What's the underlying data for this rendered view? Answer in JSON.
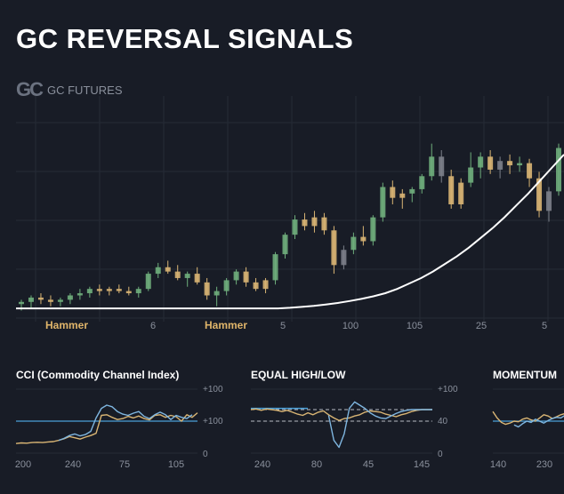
{
  "title": "GC REVERSAL SIGNALS",
  "logo": {
    "mark": "GC",
    "text": "GC FUTURES"
  },
  "colors": {
    "bull": "#6fae7c",
    "bear": "#d9b574",
    "neutral": "#7c808a",
    "trend": "#ffffff",
    "indicator_blue": "#7fb6e0",
    "indicator_gold": "#d9b574",
    "reference_line": "#4a9fd8",
    "grid": "#262b36"
  },
  "chart_data": [
    {
      "type": "candlestick",
      "name": "main-price",
      "title": "GC REVERSAL SIGNALS",
      "x_ticks": [
        "Hammer",
        "6",
        "Hammer",
        "5",
        "100",
        "105",
        "25",
        "5"
      ],
      "annotations": [
        "Hammer",
        "Hammer"
      ],
      "ylim": [
        0,
        100
      ],
      "candles": [
        {
          "o": 4,
          "h": 6,
          "l": 1,
          "c": 5,
          "t": "bull"
        },
        {
          "o": 5,
          "h": 8,
          "l": 2,
          "c": 7,
          "t": "bull"
        },
        {
          "o": 7,
          "h": 9,
          "l": 4,
          "c": 6,
          "t": "bear"
        },
        {
          "o": 6,
          "h": 8,
          "l": 3,
          "c": 5,
          "t": "bear"
        },
        {
          "o": 5,
          "h": 7,
          "l": 3,
          "c": 6,
          "t": "bull"
        },
        {
          "o": 6,
          "h": 9,
          "l": 4,
          "c": 8,
          "t": "bull"
        },
        {
          "o": 8,
          "h": 11,
          "l": 6,
          "c": 9,
          "t": "bull"
        },
        {
          "o": 9,
          "h": 12,
          "l": 7,
          "c": 11,
          "t": "bull"
        },
        {
          "o": 11,
          "h": 13,
          "l": 8,
          "c": 10,
          "t": "bear"
        },
        {
          "o": 10,
          "h": 12,
          "l": 8,
          "c": 11,
          "t": "bear"
        },
        {
          "o": 11,
          "h": 13,
          "l": 9,
          "c": 10,
          "t": "bear"
        },
        {
          "o": 10,
          "h": 12,
          "l": 8,
          "c": 9,
          "t": "bear"
        },
        {
          "o": 9,
          "h": 12,
          "l": 7,
          "c": 11,
          "t": "bull"
        },
        {
          "o": 11,
          "h": 19,
          "l": 10,
          "c": 18,
          "t": "bull"
        },
        {
          "o": 18,
          "h": 23,
          "l": 16,
          "c": 21,
          "t": "bull"
        },
        {
          "o": 21,
          "h": 24,
          "l": 18,
          "c": 19,
          "t": "bear"
        },
        {
          "o": 19,
          "h": 22,
          "l": 15,
          "c": 16,
          "t": "bear"
        },
        {
          "o": 16,
          "h": 19,
          "l": 12,
          "c": 18,
          "t": "bull"
        },
        {
          "o": 18,
          "h": 21,
          "l": 13,
          "c": 14,
          "t": "bear"
        },
        {
          "o": 14,
          "h": 16,
          "l": 6,
          "c": 8,
          "t": "bear"
        },
        {
          "o": 8,
          "h": 12,
          "l": 3,
          "c": 10,
          "t": "bull"
        },
        {
          "o": 10,
          "h": 16,
          "l": 8,
          "c": 15,
          "t": "bull"
        },
        {
          "o": 15,
          "h": 20,
          "l": 13,
          "c": 19,
          "t": "bull"
        },
        {
          "o": 19,
          "h": 21,
          "l": 12,
          "c": 14,
          "t": "bear"
        },
        {
          "o": 14,
          "h": 16,
          "l": 10,
          "c": 11,
          "t": "bear"
        },
        {
          "o": 11,
          "h": 16,
          "l": 9,
          "c": 15,
          "t": "bear"
        },
        {
          "o": 15,
          "h": 28,
          "l": 13,
          "c": 27,
          "t": "bull"
        },
        {
          "o": 27,
          "h": 37,
          "l": 25,
          "c": 36,
          "t": "bull"
        },
        {
          "o": 36,
          "h": 45,
          "l": 34,
          "c": 43,
          "t": "bull"
        },
        {
          "o": 43,
          "h": 46,
          "l": 38,
          "c": 40,
          "t": "bear"
        },
        {
          "o": 40,
          "h": 47,
          "l": 37,
          "c": 44,
          "t": "bear"
        },
        {
          "o": 44,
          "h": 46,
          "l": 36,
          "c": 38,
          "t": "bear"
        },
        {
          "o": 38,
          "h": 40,
          "l": 18,
          "c": 22,
          "t": "bear"
        },
        {
          "o": 22,
          "h": 31,
          "l": 20,
          "c": 29,
          "t": "neutral"
        },
        {
          "o": 29,
          "h": 37,
          "l": 27,
          "c": 35,
          "t": "bull"
        },
        {
          "o": 35,
          "h": 40,
          "l": 31,
          "c": 33,
          "t": "bear"
        },
        {
          "o": 33,
          "h": 45,
          "l": 31,
          "c": 44,
          "t": "bull"
        },
        {
          "o": 44,
          "h": 60,
          "l": 42,
          "c": 58,
          "t": "bull"
        },
        {
          "o": 58,
          "h": 61,
          "l": 50,
          "c": 53,
          "t": "bear"
        },
        {
          "o": 53,
          "h": 57,
          "l": 48,
          "c": 55,
          "t": "bear"
        },
        {
          "o": 55,
          "h": 58,
          "l": 51,
          "c": 57,
          "t": "bull"
        },
        {
          "o": 57,
          "h": 64,
          "l": 55,
          "c": 63,
          "t": "bull"
        },
        {
          "o": 63,
          "h": 78,
          "l": 61,
          "c": 72,
          "t": "bull"
        },
        {
          "o": 72,
          "h": 75,
          "l": 60,
          "c": 63,
          "t": "neutral"
        },
        {
          "o": 63,
          "h": 66,
          "l": 48,
          "c": 50,
          "t": "bear"
        },
        {
          "o": 50,
          "h": 62,
          "l": 48,
          "c": 60,
          "t": "bear"
        },
        {
          "o": 60,
          "h": 74,
          "l": 58,
          "c": 67,
          "t": "bull"
        },
        {
          "o": 67,
          "h": 74,
          "l": 62,
          "c": 72,
          "t": "bull"
        },
        {
          "o": 72,
          "h": 75,
          "l": 64,
          "c": 66,
          "t": "bear"
        },
        {
          "o": 66,
          "h": 72,
          "l": 62,
          "c": 70,
          "t": "neutral"
        },
        {
          "o": 70,
          "h": 73,
          "l": 64,
          "c": 68,
          "t": "bear"
        },
        {
          "o": 68,
          "h": 72,
          "l": 65,
          "c": 69,
          "t": "bull"
        },
        {
          "o": 69,
          "h": 71,
          "l": 58,
          "c": 62,
          "t": "bear"
        },
        {
          "o": 62,
          "h": 65,
          "l": 44,
          "c": 47,
          "t": "bear"
        },
        {
          "o": 47,
          "h": 58,
          "l": 42,
          "c": 56,
          "t": "neutral"
        },
        {
          "o": 56,
          "h": 78,
          "l": 54,
          "c": 76,
          "t": "bull"
        }
      ],
      "trend_line": [
        2,
        2,
        2,
        2,
        2,
        2,
        2,
        2,
        2,
        2,
        2,
        2,
        2,
        2,
        2,
        2,
        2,
        2,
        2,
        2,
        2,
        2,
        2,
        2.3,
        2.7,
        3.2,
        3.8,
        4.5,
        5.4,
        6.4,
        7.6,
        9,
        11,
        13.5,
        16,
        19,
        22.5,
        26,
        30,
        34.5,
        39,
        44,
        49.5,
        55,
        61,
        67,
        73
      ]
    },
    {
      "type": "line",
      "name": "cci-panel",
      "title": "CCI (Commodity Channel Index)",
      "x_ticks": [
        "200",
        "240",
        "75",
        "105"
      ],
      "y_ticks": [
        "+100",
        "+100",
        "0"
      ],
      "reference": 100,
      "ylim": [
        0,
        200
      ],
      "series": [
        {
          "color": "gold",
          "values": [
            30,
            32,
            31,
            33,
            34,
            33,
            35,
            36,
            40,
            45,
            52,
            48,
            44,
            50,
            55,
            62,
            118,
            120,
            112,
            105,
            108,
            115,
            110,
            116,
            108,
            104,
            118,
            120,
            112,
            118,
            114,
            100,
            120,
            112,
            126
          ]
        },
        {
          "color": "blue",
          "values": [
            null,
            null,
            null,
            null,
            null,
            null,
            null,
            null,
            40,
            46,
            55,
            60,
            54,
            58,
            68,
            110,
            140,
            150,
            145,
            130,
            122,
            118,
            125,
            130,
            115,
            108,
            120,
            128,
            120,
            105,
            118,
            112,
            108,
            120,
            null
          ]
        }
      ]
    },
    {
      "type": "line",
      "name": "equal-high-low-panel",
      "title": "EQUAL HIGH/LOW",
      "x_ticks": [
        "240",
        "80",
        "45",
        "145"
      ],
      "y_ticks": [
        "+100",
        "40",
        "0"
      ],
      "levels": [
        {
          "value": 140,
          "style": "solid-blue",
          "span": "left"
        },
        {
          "value": 136,
          "style": "dashed"
        },
        {
          "value": 100,
          "style": "dashed"
        }
      ],
      "ylim": [
        0,
        200
      ],
      "series": [
        {
          "color": "gold",
          "values": [
            136,
            138,
            134,
            138,
            136,
            134,
            130,
            134,
            128,
            122,
            118,
            126,
            120,
            128,
            132,
            120,
            110,
            102,
            108,
            110,
            116,
            120,
            128,
            132,
            130,
            128,
            122,
            118,
            114,
            120,
            124,
            130,
            134,
            136,
            136,
            136
          ]
        },
        {
          "color": "blue",
          "values": [
            null,
            null,
            null,
            null,
            null,
            null,
            null,
            null,
            null,
            null,
            null,
            null,
            null,
            null,
            null,
            118,
            40,
            18,
            60,
            140,
            160,
            150,
            140,
            126,
            116,
            110,
            108,
            116,
            124,
            130,
            134,
            136,
            136,
            136,
            136,
            136
          ]
        }
      ]
    },
    {
      "type": "line",
      "name": "momentum-panel",
      "title": "MOMENTUM",
      "x_ticks": [
        "140",
        "230"
      ],
      "reference": 100,
      "ylim": [
        0,
        200
      ],
      "series": [
        {
          "color": "gold",
          "values": [
            130,
            110,
            96,
            90,
            94,
            100,
            98,
            106,
            110,
            104,
            100,
            110,
            120,
            116,
            108,
            114,
            120,
            124,
            128
          ]
        },
        {
          "color": "blue",
          "values": [
            null,
            null,
            null,
            null,
            null,
            88,
            82,
            92,
            100,
            96,
            106,
            100,
            94,
            102,
            108,
            112,
            110,
            118,
            null
          ]
        }
      ]
    }
  ]
}
